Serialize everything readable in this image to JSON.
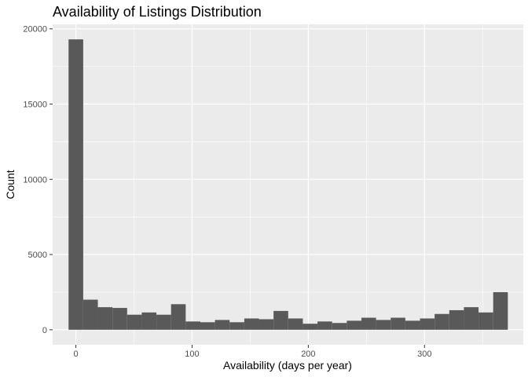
{
  "chart_data": {
    "type": "bar",
    "title": "Availability of Listings Distribution",
    "xlabel": "Availability (days per year)",
    "ylabel": "Count",
    "xlim": [
      -20,
      385
    ],
    "ylim": [
      -1000,
      20300
    ],
    "x_ticks": [
      0,
      100,
      200,
      300
    ],
    "y_ticks": [
      0,
      5000,
      10000,
      15000,
      20000
    ],
    "bin_width": 12.6,
    "bin_start": -6.3,
    "values": [
      19300,
      2000,
      1500,
      1450,
      1000,
      1150,
      1000,
      1700,
      550,
      500,
      650,
      500,
      750,
      700,
      1250,
      750,
      400,
      550,
      450,
      600,
      800,
      650,
      800,
      600,
      750,
      1050,
      1300,
      1500,
      1150,
      2500
    ],
    "bar_color": "#595959",
    "panel_background": "#ebebeb",
    "grid": true,
    "grid_color": "#ffffff"
  }
}
